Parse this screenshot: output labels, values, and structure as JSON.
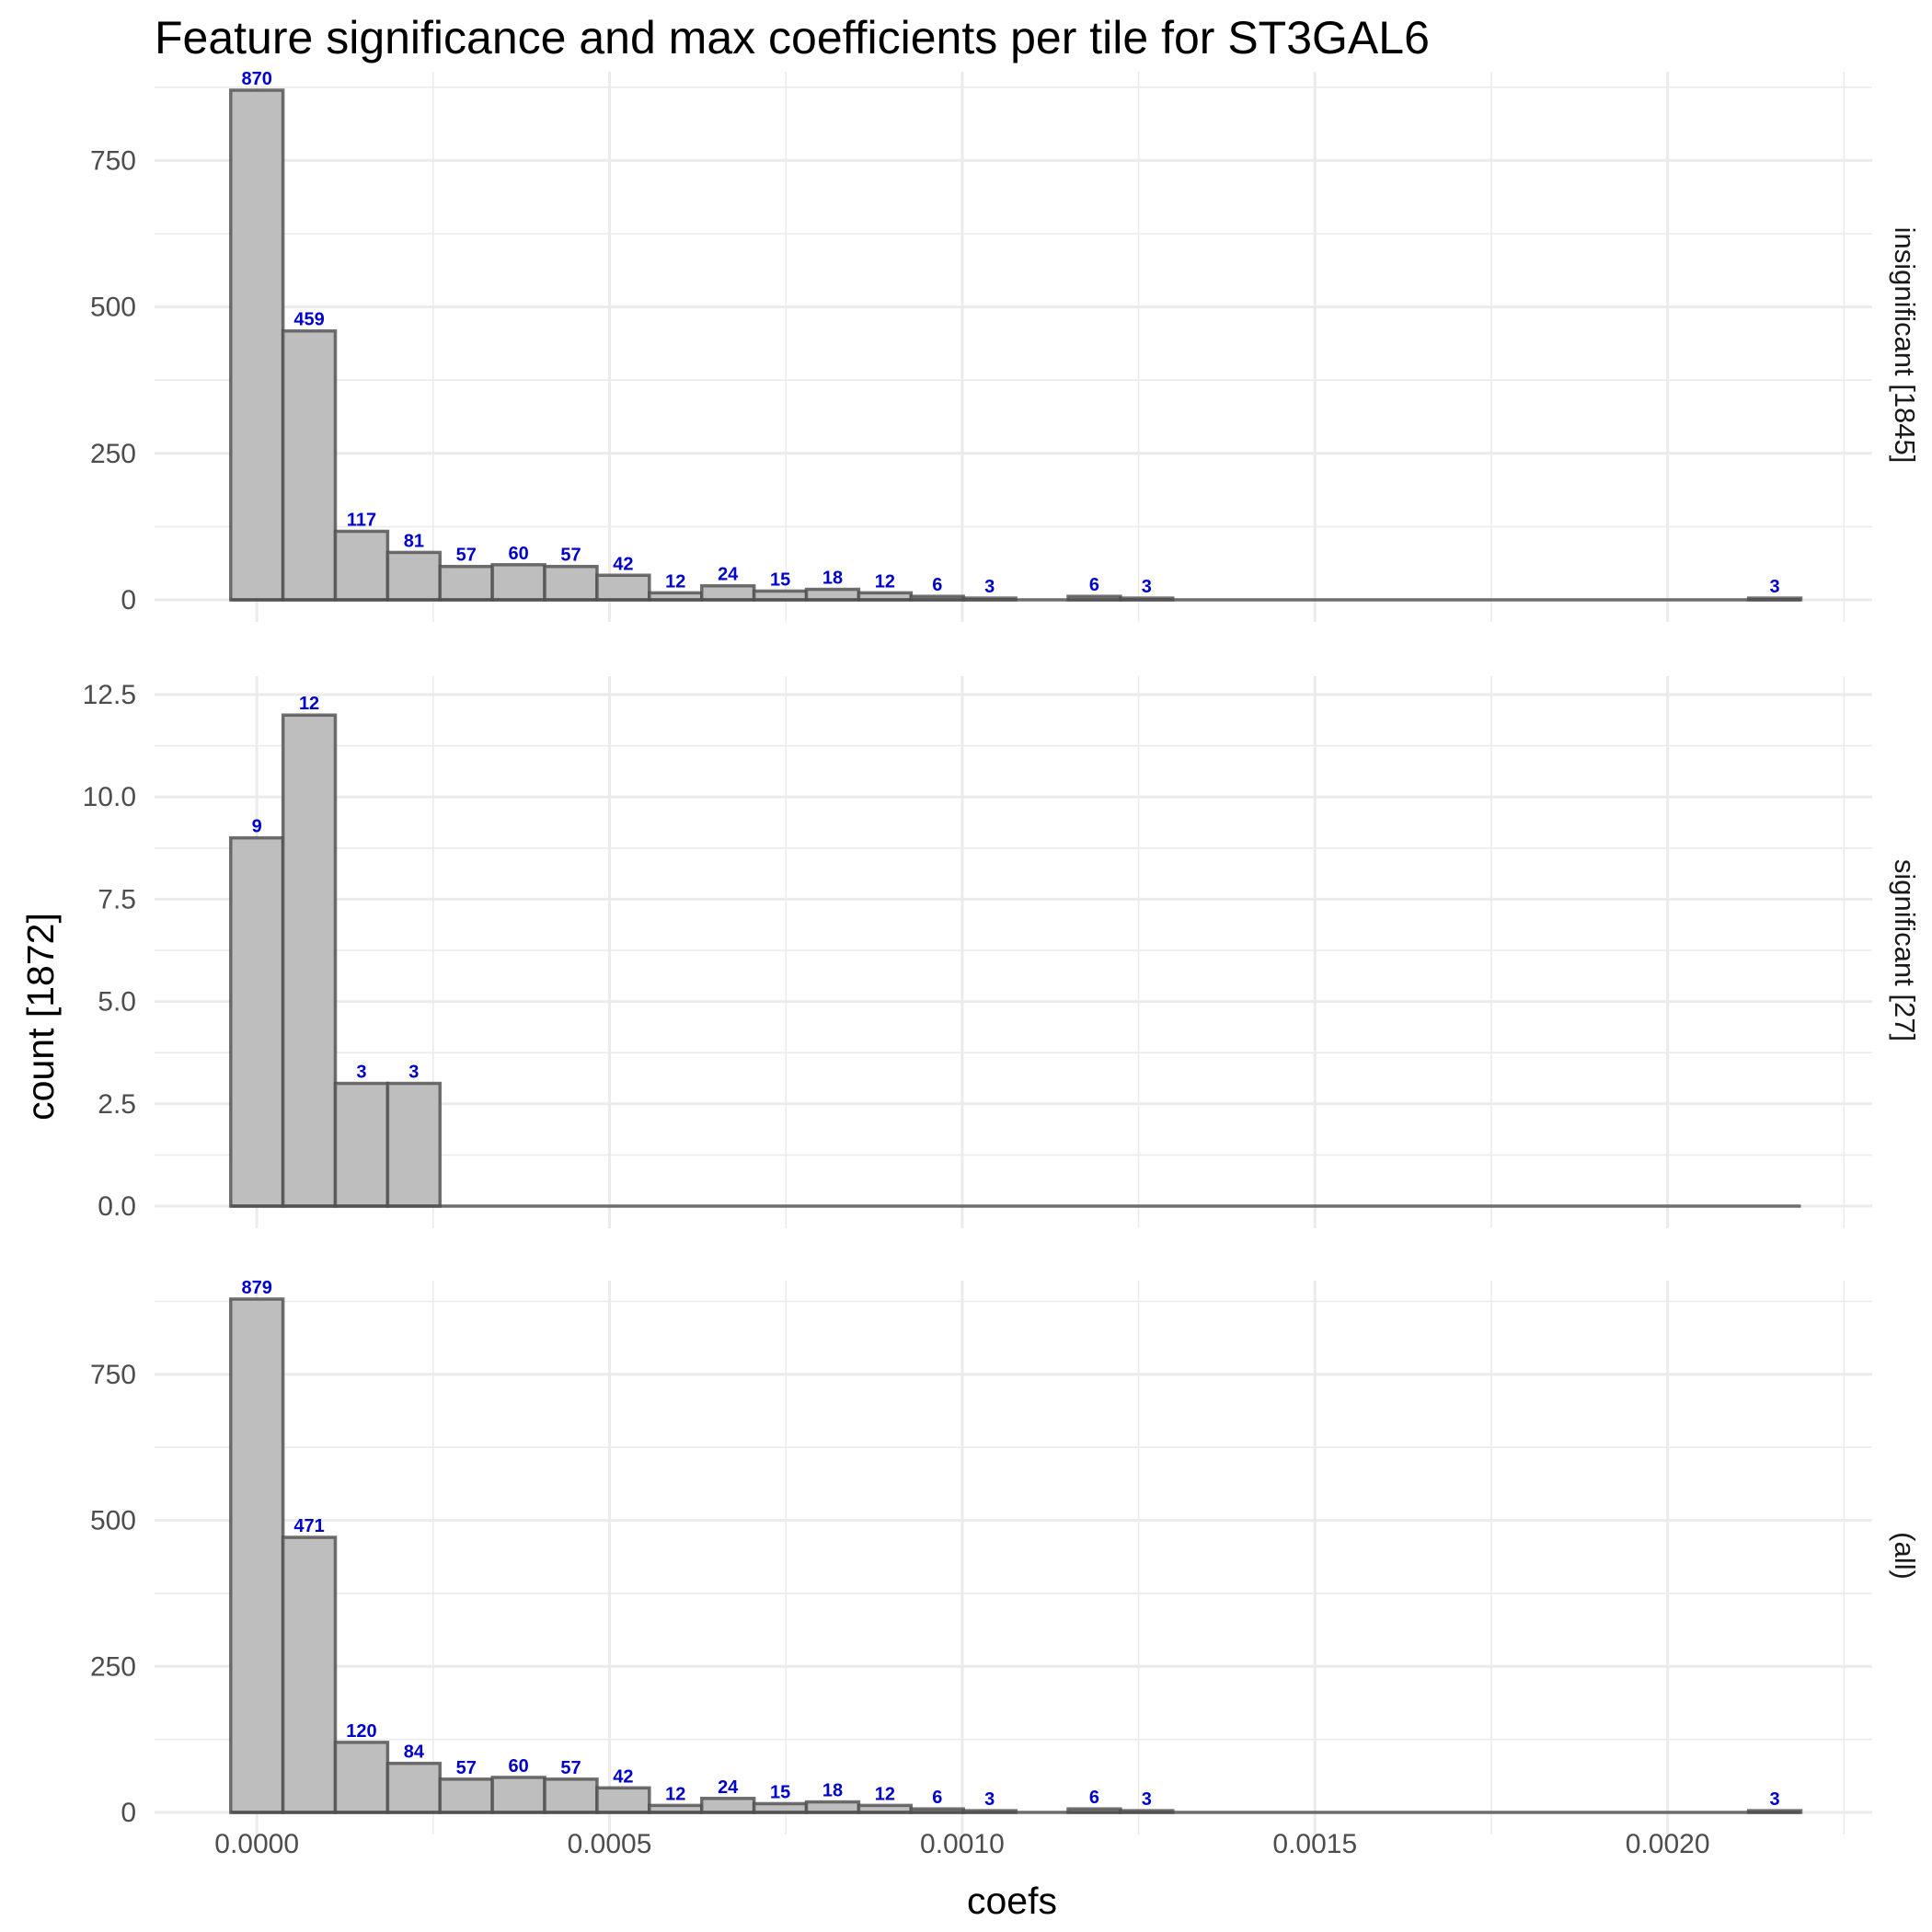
{
  "chart_data": {
    "type": "bar",
    "title": "Feature significance and max coefficients per tile for ST3GAL6",
    "xlabel": "coefs",
    "ylabel": "count [1872]",
    "x_ticks": [
      "0.0000",
      "0.0005",
      "0.0010",
      "0.0015",
      "0.0020"
    ],
    "x_tick_values": [
      0,
      0.0005,
      0.001,
      0.0015,
      0.002
    ],
    "xlim": [
      -0.000145,
      0.00229
    ],
    "bin_width": 7.42e-05,
    "bin_start": -3.71e-05,
    "grid": true,
    "facets": [
      {
        "strip": "insignificant [1845]",
        "ylim": [
          0,
          870
        ],
        "y_ticks": [
          "0",
          "250",
          "500",
          "750"
        ],
        "y_tick_values": [
          0,
          250,
          500,
          750
        ],
        "values": [
          870,
          459,
          117,
          81,
          57,
          60,
          57,
          42,
          12,
          24,
          15,
          18,
          12,
          6,
          3,
          0,
          6,
          3,
          0,
          0,
          0,
          0,
          0,
          0,
          0,
          0,
          0,
          0,
          0,
          3
        ],
        "labels": [
          "870",
          "459",
          "117",
          "81",
          "57",
          "60",
          "57",
          "42",
          "12",
          "24",
          "15",
          "18",
          "12",
          "6",
          "3",
          "",
          "6",
          "3",
          "",
          "",
          "",
          "",
          "",
          "",
          "",
          "",
          "",
          "",
          "",
          "3"
        ]
      },
      {
        "strip": "significant [27]",
        "ylim": [
          0,
          12.5
        ],
        "y_ticks": [
          "0.0",
          "2.5",
          "5.0",
          "7.5",
          "10.0",
          "12.5"
        ],
        "y_tick_values": [
          0,
          2.5,
          5,
          7.5,
          10,
          12.5
        ],
        "values": [
          9,
          12,
          3,
          3,
          0,
          0,
          0,
          0,
          0,
          0,
          0,
          0,
          0,
          0,
          0,
          0,
          0,
          0,
          0,
          0,
          0,
          0,
          0,
          0,
          0,
          0,
          0,
          0,
          0,
          0
        ],
        "labels": [
          "9",
          "12",
          "3",
          "3",
          "",
          "",
          "",
          "",
          "",
          "",
          "",
          "",
          "",
          "",
          "",
          "",
          "",
          "",
          "",
          "",
          "",
          "",
          "",
          "",
          "",
          "",
          "",
          "",
          "",
          ""
        ]
      },
      {
        "strip": "(all)",
        "ylim": [
          0,
          879
        ],
        "y_ticks": [
          "0",
          "250",
          "500",
          "750"
        ],
        "y_tick_values": [
          0,
          250,
          500,
          750
        ],
        "values": [
          879,
          471,
          120,
          84,
          57,
          60,
          57,
          42,
          12,
          24,
          15,
          18,
          12,
          6,
          3,
          0,
          6,
          3,
          0,
          0,
          0,
          0,
          0,
          0,
          0,
          0,
          0,
          0,
          0,
          3
        ],
        "labels": [
          "879",
          "471",
          "120",
          "84",
          "57",
          "60",
          "57",
          "42",
          "12",
          "24",
          "15",
          "18",
          "12",
          "6",
          "3",
          "",
          "6",
          "3",
          "",
          "",
          "",
          "",
          "",
          "",
          "",
          "",
          "",
          "",
          "",
          "3"
        ]
      }
    ]
  }
}
